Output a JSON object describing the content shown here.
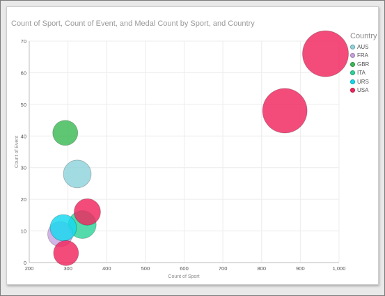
{
  "chart_data": {
    "type": "scatter",
    "title": "Count of Sport, Count of Event, and Medal Count by Sport, and Country",
    "xlabel": "Count of Sport",
    "ylabel": "Count of Event",
    "xlim": [
      200,
      1000
    ],
    "ylim": [
      0,
      70
    ],
    "xticks": [
      "200",
      "300",
      "400",
      "500",
      "600",
      "700",
      "800",
      "900",
      "1,000"
    ],
    "yticks": [
      "0",
      "10",
      "20",
      "30",
      "40",
      "50",
      "60",
      "70"
    ],
    "grid": true,
    "legend": {
      "title": "Country",
      "placement": "right",
      "entries": [
        {
          "name": "AUS",
          "color": "#8fd3dc"
        },
        {
          "name": "FRA",
          "color": "#c9a3e0"
        },
        {
          "name": "GBR",
          "color": "#3cba54"
        },
        {
          "name": "ITA",
          "color": "#2ed39a"
        },
        {
          "name": "URS",
          "color": "#14d8ef"
        },
        {
          "name": "USA",
          "color": "#f0245d"
        }
      ]
    },
    "points": [
      {
        "country": "GBR",
        "x": 293,
        "y": 41,
        "size": 18
      },
      {
        "country": "AUS",
        "x": 324,
        "y": 28,
        "size": 20
      },
      {
        "country": "ITA",
        "x": 337,
        "y": 12,
        "size": 20
      },
      {
        "country": "FRA",
        "x": 280,
        "y": 9,
        "size": 18
      },
      {
        "country": "URS",
        "x": 288,
        "y": 11,
        "size": 19
      },
      {
        "country": "USA",
        "x": 350,
        "y": 16,
        "size": 19
      },
      {
        "country": "USA",
        "x": 295,
        "y": 3,
        "size": 18
      },
      {
        "country": "USA",
        "x": 860,
        "y": 48,
        "size": 32
      },
      {
        "country": "USA",
        "x": 965,
        "y": 66,
        "size": 33
      }
    ]
  }
}
